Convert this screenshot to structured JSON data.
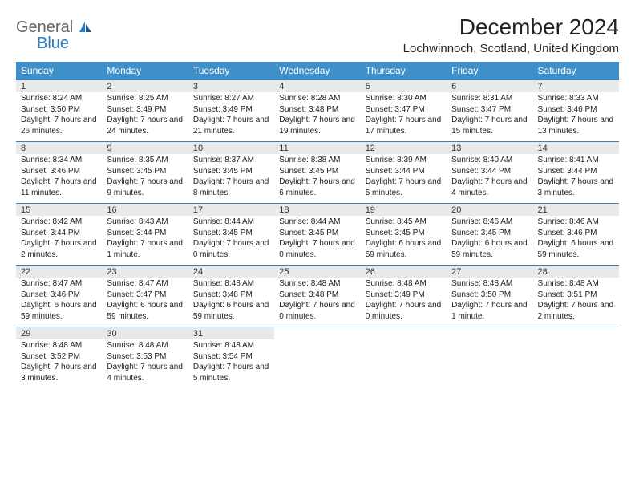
{
  "brand": {
    "word1": "General",
    "word2": "Blue",
    "logo_fill": "#2b7bbf",
    "text_gray": "#666666"
  },
  "title": "December 2024",
  "location": "Lochwinnoch, Scotland, United Kingdom",
  "styling": {
    "header_row_bg": "#3f8fc9",
    "header_row_fg": "#ffffff",
    "daynum_bg": "#e7e9ea",
    "row_separator": "#3b7fb5",
    "body_bg": "#ffffff",
    "font_family": "Arial, Helvetica, sans-serif",
    "month_title_size_pt": 21,
    "location_size_pt": 11,
    "dayhead_size_pt": 9,
    "daynum_size_pt": 8,
    "body_size_pt": 7.5
  },
  "day_headers": [
    "Sunday",
    "Monday",
    "Tuesday",
    "Wednesday",
    "Thursday",
    "Friday",
    "Saturday"
  ],
  "weeks": [
    [
      {
        "n": "1",
        "sunrise": "8:24 AM",
        "sunset": "3:50 PM",
        "daylight": "7 hours and 26 minutes."
      },
      {
        "n": "2",
        "sunrise": "8:25 AM",
        "sunset": "3:49 PM",
        "daylight": "7 hours and 24 minutes."
      },
      {
        "n": "3",
        "sunrise": "8:27 AM",
        "sunset": "3:49 PM",
        "daylight": "7 hours and 21 minutes."
      },
      {
        "n": "4",
        "sunrise": "8:28 AM",
        "sunset": "3:48 PM",
        "daylight": "7 hours and 19 minutes."
      },
      {
        "n": "5",
        "sunrise": "8:30 AM",
        "sunset": "3:47 PM",
        "daylight": "7 hours and 17 minutes."
      },
      {
        "n": "6",
        "sunrise": "8:31 AM",
        "sunset": "3:47 PM",
        "daylight": "7 hours and 15 minutes."
      },
      {
        "n": "7",
        "sunrise": "8:33 AM",
        "sunset": "3:46 PM",
        "daylight": "7 hours and 13 minutes."
      }
    ],
    [
      {
        "n": "8",
        "sunrise": "8:34 AM",
        "sunset": "3:46 PM",
        "daylight": "7 hours and 11 minutes."
      },
      {
        "n": "9",
        "sunrise": "8:35 AM",
        "sunset": "3:45 PM",
        "daylight": "7 hours and 9 minutes."
      },
      {
        "n": "10",
        "sunrise": "8:37 AM",
        "sunset": "3:45 PM",
        "daylight": "7 hours and 8 minutes."
      },
      {
        "n": "11",
        "sunrise": "8:38 AM",
        "sunset": "3:45 PM",
        "daylight": "7 hours and 6 minutes."
      },
      {
        "n": "12",
        "sunrise": "8:39 AM",
        "sunset": "3:44 PM",
        "daylight": "7 hours and 5 minutes."
      },
      {
        "n": "13",
        "sunrise": "8:40 AM",
        "sunset": "3:44 PM",
        "daylight": "7 hours and 4 minutes."
      },
      {
        "n": "14",
        "sunrise": "8:41 AM",
        "sunset": "3:44 PM",
        "daylight": "7 hours and 3 minutes."
      }
    ],
    [
      {
        "n": "15",
        "sunrise": "8:42 AM",
        "sunset": "3:44 PM",
        "daylight": "7 hours and 2 minutes."
      },
      {
        "n": "16",
        "sunrise": "8:43 AM",
        "sunset": "3:44 PM",
        "daylight": "7 hours and 1 minute."
      },
      {
        "n": "17",
        "sunrise": "8:44 AM",
        "sunset": "3:45 PM",
        "daylight": "7 hours and 0 minutes."
      },
      {
        "n": "18",
        "sunrise": "8:44 AM",
        "sunset": "3:45 PM",
        "daylight": "7 hours and 0 minutes."
      },
      {
        "n": "19",
        "sunrise": "8:45 AM",
        "sunset": "3:45 PM",
        "daylight": "6 hours and 59 minutes."
      },
      {
        "n": "20",
        "sunrise": "8:46 AM",
        "sunset": "3:45 PM",
        "daylight": "6 hours and 59 minutes."
      },
      {
        "n": "21",
        "sunrise": "8:46 AM",
        "sunset": "3:46 PM",
        "daylight": "6 hours and 59 minutes."
      }
    ],
    [
      {
        "n": "22",
        "sunrise": "8:47 AM",
        "sunset": "3:46 PM",
        "daylight": "6 hours and 59 minutes."
      },
      {
        "n": "23",
        "sunrise": "8:47 AM",
        "sunset": "3:47 PM",
        "daylight": "6 hours and 59 minutes."
      },
      {
        "n": "24",
        "sunrise": "8:48 AM",
        "sunset": "3:48 PM",
        "daylight": "6 hours and 59 minutes."
      },
      {
        "n": "25",
        "sunrise": "8:48 AM",
        "sunset": "3:48 PM",
        "daylight": "7 hours and 0 minutes."
      },
      {
        "n": "26",
        "sunrise": "8:48 AM",
        "sunset": "3:49 PM",
        "daylight": "7 hours and 0 minutes."
      },
      {
        "n": "27",
        "sunrise": "8:48 AM",
        "sunset": "3:50 PM",
        "daylight": "7 hours and 1 minute."
      },
      {
        "n": "28",
        "sunrise": "8:48 AM",
        "sunset": "3:51 PM",
        "daylight": "7 hours and 2 minutes."
      }
    ],
    [
      {
        "n": "29",
        "sunrise": "8:48 AM",
        "sunset": "3:52 PM",
        "daylight": "7 hours and 3 minutes."
      },
      {
        "n": "30",
        "sunrise": "8:48 AM",
        "sunset": "3:53 PM",
        "daylight": "7 hours and 4 minutes."
      },
      {
        "n": "31",
        "sunrise": "8:48 AM",
        "sunset": "3:54 PM",
        "daylight": "7 hours and 5 minutes."
      },
      null,
      null,
      null,
      null
    ]
  ],
  "labels": {
    "sunrise_prefix": "Sunrise: ",
    "sunset_prefix": "Sunset: ",
    "daylight_prefix": "Daylight: "
  }
}
